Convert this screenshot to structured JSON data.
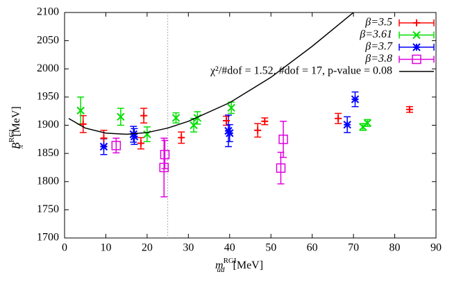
{
  "chart_data": {
    "type": "errorbar",
    "xlabel": {
      "base": "m",
      "sub": "ud",
      "sup": "RGI",
      "unit": "[MeV]"
    },
    "ylabel": {
      "base": "B",
      "sub": "π",
      "sup": "RGI",
      "unit": "[MeV]"
    },
    "xlim": [
      0,
      90
    ],
    "xticks": [
      0,
      10,
      20,
      30,
      40,
      50,
      60,
      70,
      80,
      90
    ],
    "ylim": [
      1700,
      2100
    ],
    "yticks": [
      1700,
      1750,
      1800,
      1850,
      1900,
      1950,
      2000,
      2050,
      2100
    ],
    "vline": 25,
    "legend": "top-right",
    "series": [
      {
        "name": "β=3.5",
        "color": "#ff0000",
        "marker": "plus",
        "x": [
          4.5,
          9.5,
          18.5,
          19.2,
          28.3,
          39.2,
          46.8,
          48.5,
          66.3,
          83.6
        ],
        "values": [
          1902,
          1877,
          1868,
          1917,
          1878,
          1908,
          1891,
          1907,
          1912,
          1928
        ],
        "errors": [
          15,
          14,
          10,
          13,
          10,
          8,
          12,
          6,
          9,
          5
        ]
      },
      {
        "name": "β=3.61",
        "color": "#00e000",
        "marker": "cross",
        "x": [
          3.9,
          13.6,
          20,
          27,
          31.3,
          32.2,
          40.4,
          72.3,
          73.4
        ],
        "values": [
          1926,
          1915,
          1884,
          1913,
          1900,
          1913,
          1931,
          1897,
          1904
        ],
        "errors": [
          24,
          15,
          13,
          9,
          12,
          11,
          10,
          6,
          6
        ]
      },
      {
        "name": "β=3.7",
        "color": "#0000ff",
        "marker": "star",
        "x": [
          9.5,
          16.7,
          16.9,
          39.7,
          40,
          68.5,
          70.4
        ],
        "values": [
          1862,
          1884,
          1880,
          1890,
          1886,
          1901,
          1946
        ],
        "errors": [
          14,
          14,
          14,
          28,
          15,
          14,
          13
        ]
      },
      {
        "name": "β=3.8",
        "color": "#e000e0",
        "marker": "square",
        "x": [
          12.5,
          24.1,
          24.3,
          52.4,
          53
        ],
        "values": [
          1864,
          1825,
          1848,
          1824,
          1875
        ],
        "errors": [
          13,
          52,
          25,
          28,
          32
        ]
      },
      {
        "name": "χ²/#dof = 1.52, #dof = 17, p-value = 0.08",
        "color": "#000000",
        "marker": "line",
        "x": [
          1,
          5,
          10,
          15,
          20,
          25,
          30,
          40,
          50,
          60,
          70
        ],
        "values": [
          1912,
          1895,
          1886,
          1884,
          1887,
          1895,
          1907,
          1940,
          1985,
          2040,
          2100
        ]
      }
    ]
  }
}
